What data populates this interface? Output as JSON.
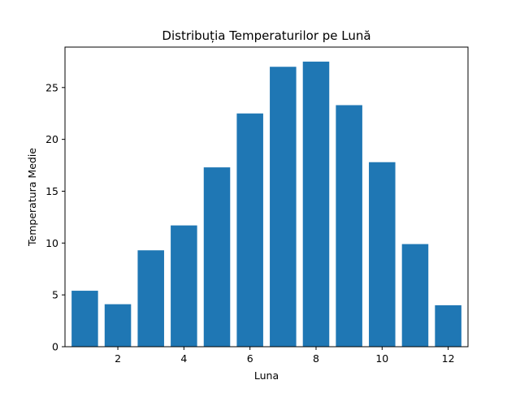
{
  "chart_data": {
    "type": "bar",
    "title": "Distribuția Temperaturilor pe Lună",
    "xlabel": "Luna",
    "ylabel": "Temperatura Medie",
    "x": [
      1,
      2,
      3,
      4,
      5,
      6,
      7,
      8,
      9,
      10,
      11,
      12
    ],
    "values": [
      5.4,
      4.1,
      9.3,
      11.7,
      17.3,
      22.5,
      27.0,
      27.5,
      23.3,
      17.8,
      9.9,
      4.0
    ],
    "xlim": [
      0.4,
      12.6
    ],
    "ylim": [
      0,
      28.9
    ],
    "xticks": [
      2,
      4,
      6,
      8,
      10,
      12
    ],
    "yticks": [
      0,
      5,
      10,
      15,
      20,
      25
    ],
    "bar_width": 0.8,
    "bar_color": "#1f77b4",
    "grid": false,
    "legend": "none"
  }
}
